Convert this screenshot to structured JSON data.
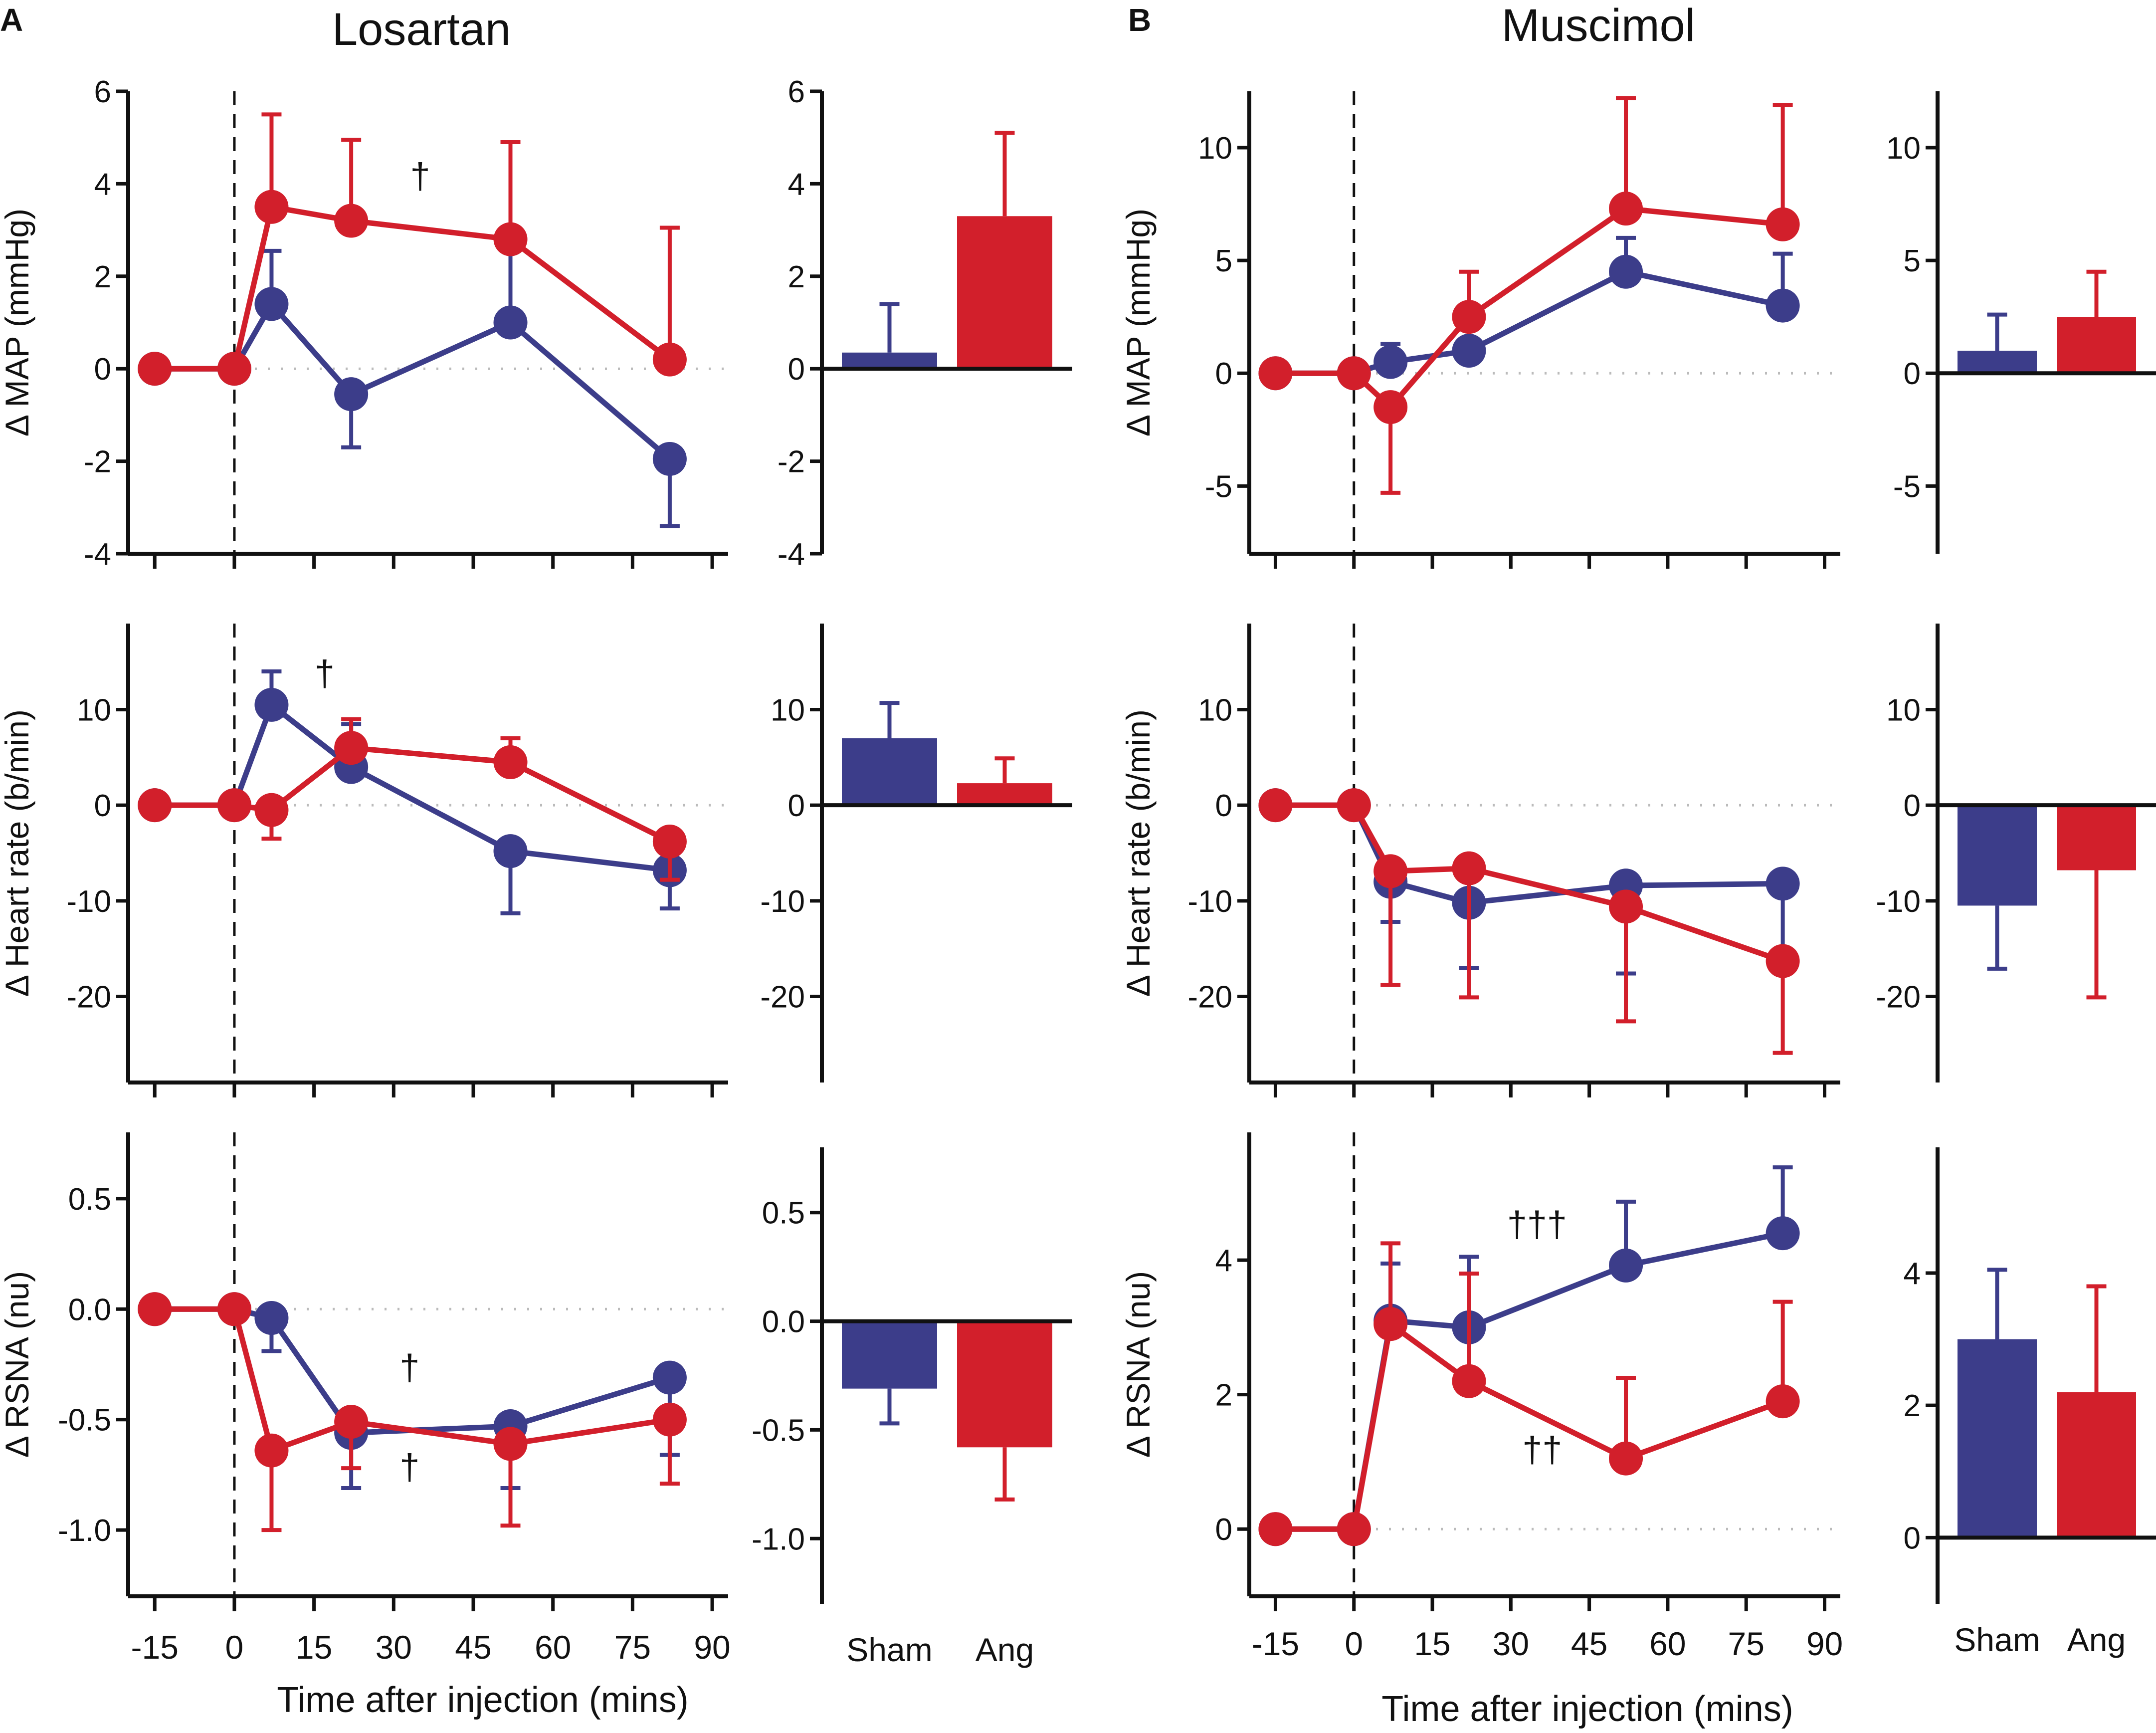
{
  "colors": {
    "sham": "#3c3d8a",
    "ang": "#d21f2b",
    "axis": "#111111",
    "zero": "#bbbbbb"
  },
  "panel_letters": [
    "A",
    "B"
  ],
  "titles": [
    "Losartan",
    "Muscimol"
  ],
  "xlabel": "Time after injection (mins)",
  "bar_categories": [
    "Sham",
    "Ang"
  ],
  "chart_data": [
    {
      "id": "A-map-line",
      "type": "line",
      "group": "Losartan",
      "ylabel": "Δ MAP (mmHg)",
      "xlim": [
        -20,
        93
      ],
      "ylim": [
        -4,
        6
      ],
      "xticks": [
        -15,
        0,
        15,
        30,
        45,
        60,
        75,
        90
      ],
      "yticks": [
        6,
        4,
        2,
        0,
        -2,
        -4
      ],
      "ytick_labels": [
        "6",
        "4",
        "2",
        "0",
        "-2",
        "-4"
      ],
      "show_xtick_labels": false,
      "series": [
        {
          "name": "Sham",
          "x": [
            -15,
            0,
            7,
            22,
            52,
            82
          ],
          "y": [
            0,
            0,
            1.4,
            -0.55,
            1.0,
            -1.95
          ],
          "err": [
            0,
            0,
            1.15,
            1.15,
            1.75,
            1.45
          ]
        },
        {
          "name": "Ang",
          "x": [
            -15,
            0,
            7,
            22,
            52,
            82
          ],
          "y": [
            0,
            0,
            3.5,
            3.2,
            2.8,
            0.2
          ],
          "err": [
            0,
            0,
            2.0,
            1.75,
            2.1,
            2.85
          ]
        }
      ],
      "annotations": [
        {
          "text": "†",
          "x": 35,
          "y": 3.9
        }
      ]
    },
    {
      "id": "A-map-bar",
      "type": "bar",
      "group": "Losartan",
      "ylabel": "",
      "ylim": [
        -4,
        6
      ],
      "yticks": [
        6,
        4,
        2,
        0,
        -2,
        -4
      ],
      "ytick_labels": [
        "6",
        "4",
        "2",
        "0",
        "-2",
        "-4"
      ],
      "categories": [
        "Sham",
        "Ang"
      ],
      "values": [
        0.35,
        3.3
      ],
      "err": [
        1.05,
        1.8
      ],
      "show_categories": false
    },
    {
      "id": "A-hr-line",
      "type": "line",
      "group": "Losartan",
      "ylabel": "Δ Heart rate (b/min)",
      "xlim": [
        -20,
        93
      ],
      "ylim": [
        -29,
        19
      ],
      "xticks": [
        -15,
        0,
        15,
        30,
        45,
        60,
        75,
        90
      ],
      "yticks": [
        10,
        0,
        -10,
        -20
      ],
      "ytick_labels": [
        "10",
        "0",
        "-10",
        "-20"
      ],
      "show_xtick_labels": false,
      "series": [
        {
          "name": "Sham",
          "x": [
            -15,
            0,
            7,
            22,
            52,
            82
          ],
          "y": [
            0,
            0,
            10.5,
            4.0,
            -4.8,
            -6.8
          ],
          "err": [
            0,
            0,
            3.5,
            4.5,
            6.5,
            4.0
          ]
        },
        {
          "name": "Ang",
          "x": [
            -15,
            0,
            7,
            22,
            52,
            82
          ],
          "y": [
            0,
            0,
            -0.5,
            6.0,
            4.5,
            -3.8
          ],
          "err": [
            0,
            0,
            3.0,
            3.0,
            2.5,
            4.0
          ]
        }
      ],
      "annotations": [
        {
          "text": "†",
          "x": 17,
          "y": 12.5
        }
      ]
    },
    {
      "id": "A-hr-bar",
      "type": "bar",
      "group": "Losartan",
      "ylabel": "",
      "ylim": [
        -29,
        19
      ],
      "yticks": [
        10,
        0,
        -10,
        -20
      ],
      "ytick_labels": [
        "10",
        "0",
        "-10",
        "-20"
      ],
      "categories": [
        "Sham",
        "Ang"
      ],
      "values": [
        7.0,
        2.3
      ],
      "err": [
        3.7,
        2.6
      ],
      "show_categories": false
    },
    {
      "id": "A-rsna-line",
      "type": "line",
      "group": "Losartan",
      "ylabel": "Δ RSNA (nu)",
      "xlim": [
        -20,
        93
      ],
      "ylim": [
        -1.3,
        0.8
      ],
      "xticks": [
        -15,
        0,
        15,
        30,
        45,
        60,
        75,
        90
      ],
      "xtick_labels": [
        "-15",
        "0",
        "15",
        "30",
        "45",
        "60",
        "75",
        "90"
      ],
      "yticks": [
        0.5,
        0,
        -0.5,
        -1.0
      ],
      "ytick_labels": [
        "0.5",
        "0.0",
        "-0.5",
        "-1.0"
      ],
      "show_xtick_labels": true,
      "series": [
        {
          "name": "Sham",
          "x": [
            -15,
            0,
            7,
            22,
            52,
            82
          ],
          "y": [
            0,
            0,
            -0.04,
            -0.56,
            -0.53,
            -0.31
          ],
          "err": [
            0,
            0,
            0.15,
            0.25,
            0.28,
            0.35
          ]
        },
        {
          "name": "Ang",
          "x": [
            -15,
            0,
            7,
            22,
            52,
            82
          ],
          "y": [
            0,
            0,
            -0.64,
            -0.51,
            -0.61,
            -0.5
          ],
          "err": [
            0,
            0,
            0.36,
            0.21,
            0.37,
            0.29
          ]
        }
      ],
      "annotations": [
        {
          "text": "†",
          "x": 33,
          "y": -0.32
        },
        {
          "text": "†",
          "x": 33,
          "y": -0.77
        }
      ]
    },
    {
      "id": "A-rsna-bar",
      "type": "bar",
      "group": "Losartan",
      "ylabel": "",
      "ylim": [
        -1.3,
        0.8
      ],
      "yticks": [
        0.5,
        0,
        -0.5,
        -1.0
      ],
      "ytick_labels": [
        "0.5",
        "0.0",
        "-0.5",
        "-1.0"
      ],
      "categories": [
        "Sham",
        "Ang"
      ],
      "values": [
        -0.31,
        -0.58
      ],
      "err": [
        0.16,
        0.24
      ],
      "show_categories": true
    },
    {
      "id": "B-map-line",
      "type": "line",
      "group": "Muscimol",
      "ylabel": "Δ MAP (mmHg)",
      "xlim": [
        -20,
        93
      ],
      "ylim": [
        -8,
        12.5
      ],
      "xticks": [
        -15,
        0,
        15,
        30,
        45,
        60,
        75,
        90
      ],
      "yticks": [
        10,
        5,
        0,
        -5
      ],
      "ytick_labels": [
        "10",
        "5",
        "0",
        "-5"
      ],
      "show_xtick_labels": false,
      "series": [
        {
          "name": "Sham",
          "x": [
            -15,
            0,
            7,
            22,
            52,
            82
          ],
          "y": [
            0,
            0,
            0.5,
            1.0,
            4.5,
            3.0
          ],
          "err": [
            0,
            0,
            0.8,
            1.5,
            1.5,
            2.3
          ]
        },
        {
          "name": "Ang",
          "x": [
            -15,
            0,
            7,
            22,
            52,
            82
          ],
          "y": [
            0,
            0,
            -1.5,
            2.5,
            7.3,
            6.6
          ],
          "err": [
            0,
            0,
            3.8,
            2.0,
            4.9,
            5.3
          ]
        }
      ],
      "annotations": []
    },
    {
      "id": "B-map-bar",
      "type": "bar",
      "group": "Muscimol",
      "ylabel": "",
      "ylim": [
        -8,
        12.5
      ],
      "yticks": [
        10,
        5,
        0,
        -5
      ],
      "ytick_labels": [
        "10",
        "5",
        "0",
        "-5"
      ],
      "categories": [
        "Sham",
        "Ang"
      ],
      "values": [
        1.0,
        2.5
      ],
      "err": [
        1.6,
        2.0
      ],
      "show_categories": false
    },
    {
      "id": "B-hr-line",
      "type": "line",
      "group": "Muscimol",
      "ylabel": "Δ Heart rate (b/min)",
      "xlim": [
        -20,
        93
      ],
      "ylim": [
        -29,
        19
      ],
      "xticks": [
        -15,
        0,
        15,
        30,
        45,
        60,
        75,
        90
      ],
      "yticks": [
        10,
        0,
        -10,
        -20
      ],
      "ytick_labels": [
        "10",
        "0",
        "-10",
        "-20"
      ],
      "show_xtick_labels": false,
      "series": [
        {
          "name": "Sham",
          "x": [
            -15,
            0,
            7,
            22,
            52,
            82
          ],
          "y": [
            0,
            0,
            -8.0,
            -10.2,
            -8.4,
            -8.2
          ],
          "err": [
            0,
            0,
            4.2,
            6.8,
            9.2,
            7.6
          ]
        },
        {
          "name": "Ang",
          "x": [
            -15,
            0,
            7,
            22,
            52,
            82
          ],
          "y": [
            0,
            0,
            -6.9,
            -6.6,
            -10.6,
            -16.3
          ],
          "err": [
            0,
            0,
            11.9,
            13.5,
            12.0,
            9.6
          ]
        }
      ],
      "annotations": []
    },
    {
      "id": "B-hr-bar",
      "type": "bar",
      "group": "Muscimol",
      "ylabel": "",
      "ylim": [
        -29,
        19
      ],
      "yticks": [
        10,
        0,
        -10,
        -20
      ],
      "ytick_labels": [
        "10",
        "0",
        "-10",
        "-20"
      ],
      "categories": [
        "Sham",
        "Ang"
      ],
      "values": [
        -10.5,
        -6.8
      ],
      "err": [
        6.6,
        13.3
      ],
      "show_categories": false
    },
    {
      "id": "B-rsna-line",
      "type": "line",
      "group": "Muscimol",
      "ylabel": "Δ RSNA (nu)",
      "xlim": [
        -20,
        93
      ],
      "ylim": [
        -1.0,
        5.9
      ],
      "xticks": [
        -15,
        0,
        15,
        30,
        45,
        60,
        75,
        90
      ],
      "xtick_labels": [
        "-15",
        "0",
        "15",
        "30",
        "45",
        "60",
        "75",
        "90"
      ],
      "yticks": [
        4,
        2,
        0
      ],
      "ytick_labels": [
        "4",
        "2",
        "0"
      ],
      "show_xtick_labels": true,
      "series": [
        {
          "name": "Sham",
          "x": [
            -15,
            0,
            7,
            22,
            52,
            82
          ],
          "y": [
            0,
            0,
            3.1,
            3.0,
            3.92,
            4.4
          ],
          "err": [
            0,
            0,
            0.85,
            1.05,
            0.95,
            0.98
          ]
        },
        {
          "name": "Ang",
          "x": [
            -15,
            0,
            7,
            22,
            52,
            82
          ],
          "y": [
            0,
            0,
            3.05,
            2.2,
            1.05,
            1.9
          ],
          "err": [
            0,
            0,
            1.2,
            1.6,
            1.2,
            1.48
          ]
        }
      ],
      "annotations": [
        {
          "text": "†††",
          "x": 35,
          "y": 4.35
        },
        {
          "text": "††",
          "x": 36,
          "y": 1.0
        }
      ]
    },
    {
      "id": "B-rsna-bar",
      "type": "bar",
      "group": "Muscimol",
      "ylabel": "",
      "ylim": [
        -1.0,
        5.9
      ],
      "yticks": [
        4,
        2,
        0
      ],
      "ytick_labels": [
        "4",
        "2",
        "0"
      ],
      "categories": [
        "Sham",
        "Ang"
      ],
      "values": [
        3.0,
        2.2
      ],
      "err": [
        1.05,
        1.6
      ],
      "show_categories": true
    }
  ]
}
